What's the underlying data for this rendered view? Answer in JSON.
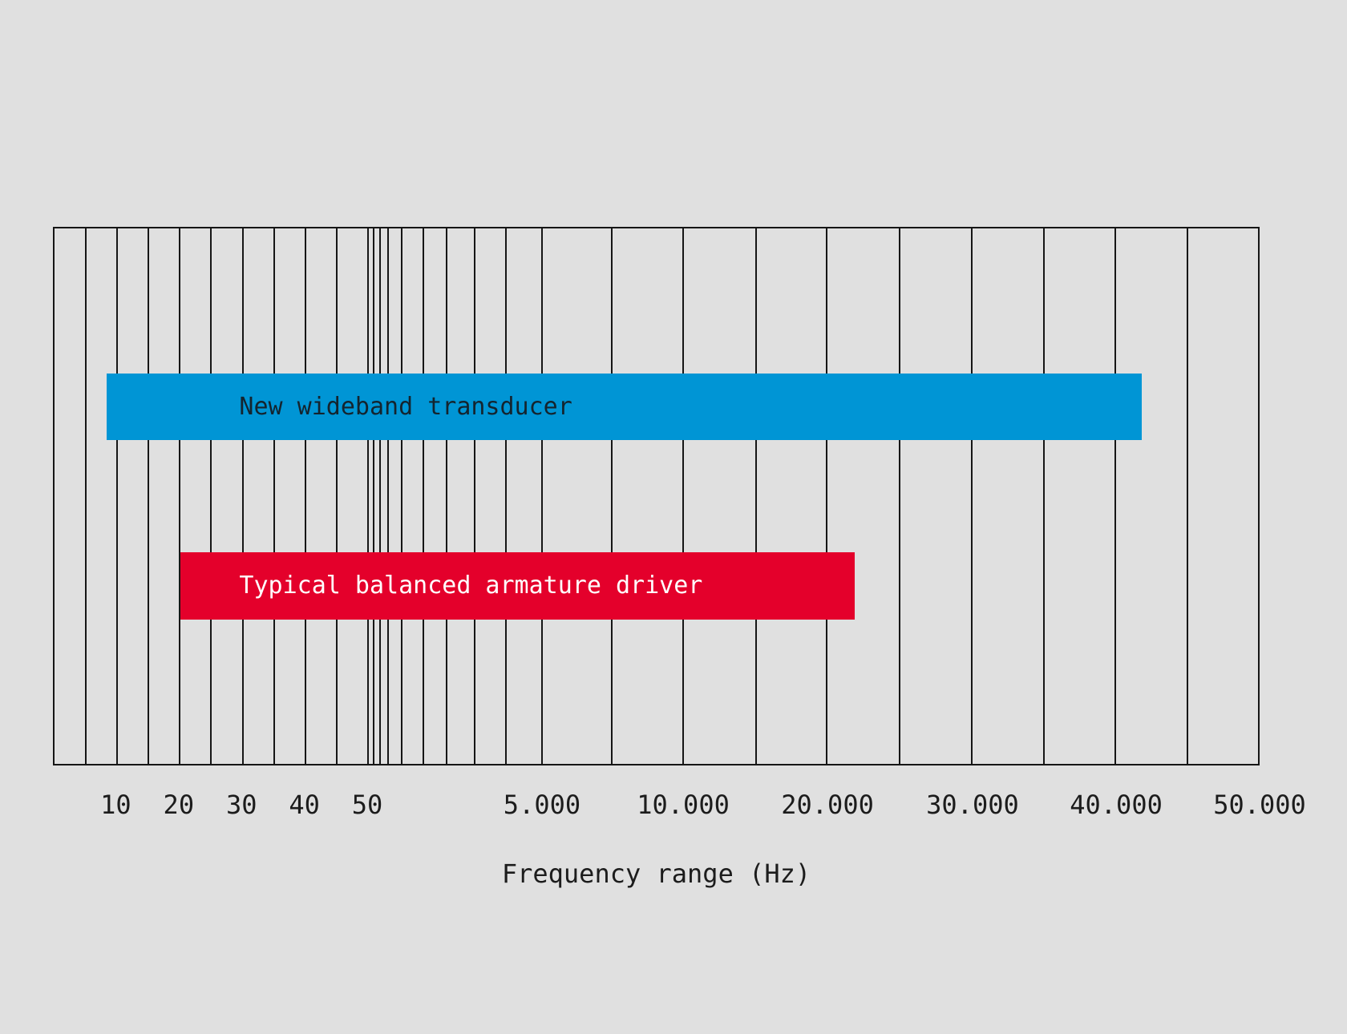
{
  "colors": {
    "background": "#e0e0e0",
    "grid": "#161616",
    "tick_text": "#1c1c1c",
    "bar_blue": "#0095d5",
    "bar_red": "#e4002b",
    "blue_bar_label_text": "#14242e",
    "red_bar_label_text": "#ffffff"
  },
  "chart_data": {
    "type": "bar",
    "orientation": "horizontal-range",
    "title": "",
    "xlabel": "Frequency range (Hz)",
    "legend": "none",
    "grid": "vertical-only",
    "x_axis": {
      "scale": "stylized: linear 0-50 Hz on left section, compressed transition, then even decade-style spacing to 50.000 Hz",
      "tick_labels": [
        "10",
        "20",
        "30",
        "40",
        "50",
        "5.000",
        "10.000",
        "20.000",
        "30.000",
        "40.000",
        "50.000"
      ],
      "tick_positions": [
        0.0521,
        0.1042,
        0.1563,
        0.2084,
        0.2605,
        0.4053,
        0.5223,
        0.6419,
        0.7621,
        0.8811,
        1.0
      ],
      "gridline_positions": [
        0.026,
        0.0521,
        0.0781,
        0.1042,
        0.1302,
        0.1563,
        0.1823,
        0.2084,
        0.2344,
        0.2605,
        0.2651,
        0.2704,
        0.2771,
        0.2884,
        0.3063,
        0.3256,
        0.3488,
        0.3748,
        0.4053,
        0.4631,
        0.5223,
        0.5827,
        0.6419,
        0.7023,
        0.7621,
        0.8219,
        0.8811,
        0.9415
      ]
    },
    "label_indent_fraction": 0.1535,
    "series": [
      {
        "name": "New wideband transducer",
        "range_hz_approx": [
          8,
          42000
        ],
        "color": "#0095d5",
        "label_color": "#14242e",
        "bar": {
          "x0": 0.0432,
          "x1": 0.9037,
          "y0": 0.2708,
          "h": 0.125
        }
      },
      {
        "name": "Typical balanced armature driver",
        "range_hz_approx": [
          20,
          21000
        ],
        "color": "#e4002b",
        "label_color": "#ffffff",
        "bar": {
          "x0": 0.1043,
          "x1": 0.6651,
          "y0": 0.6042,
          "h": 0.1265
        }
      }
    ]
  }
}
